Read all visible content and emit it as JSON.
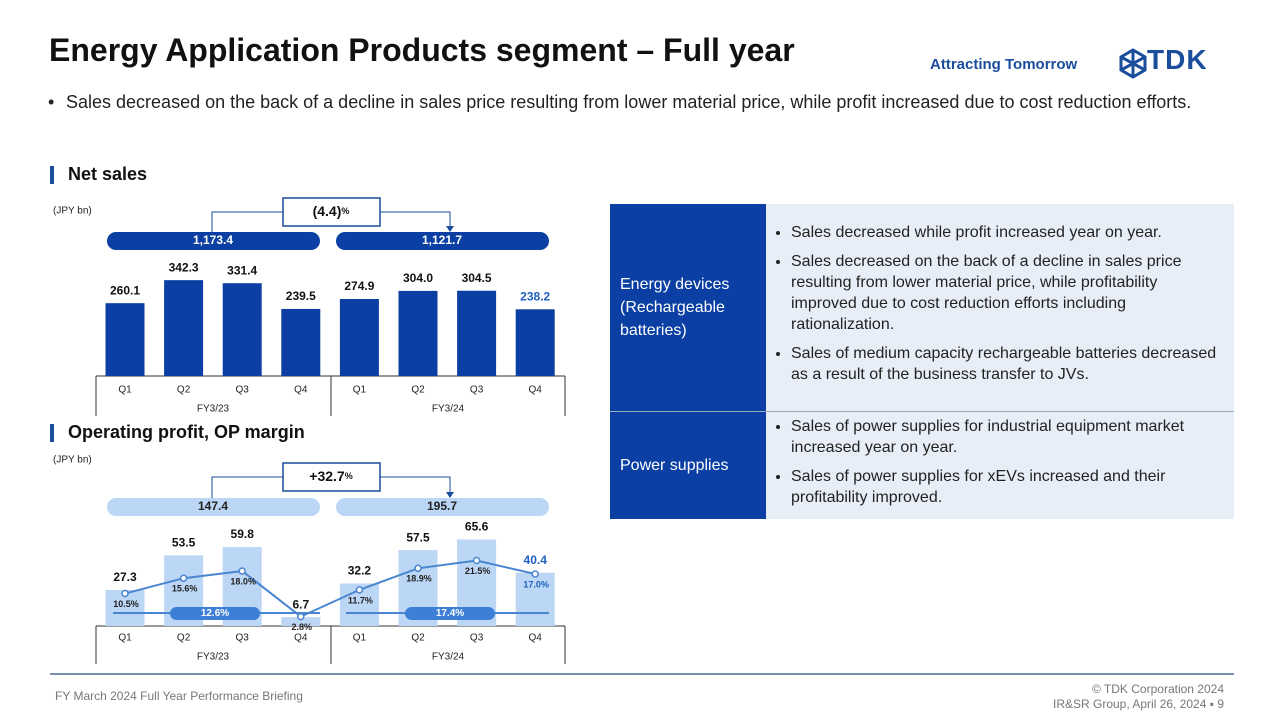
{
  "header": {
    "title": "Energy Application Products segment – Full year",
    "tagline": "Attracting Tomorrow",
    "logo": "TDK"
  },
  "summary": "Sales decreased on the back of a decline in sales price resulting from lower material price, while profit increased due to cost reduction efforts.",
  "chart_data": [
    {
      "type": "bar",
      "title": "Net sales",
      "unit": "(JPY bn)",
      "change": "(4.4)",
      "change_suffix": "%",
      "totals": [
        "1,173.4",
        "1,121.7"
      ],
      "categories": [
        "Q1",
        "Q2",
        "Q3",
        "Q4",
        "Q1",
        "Q2",
        "Q3",
        "Q4"
      ],
      "groups": [
        "FY3/23",
        "FY3/24"
      ],
      "values": [
        260.1,
        342.3,
        331.4,
        239.5,
        274.9,
        304.0,
        304.5,
        238.2
      ],
      "value_labels": [
        "260.1",
        "342.3",
        "331.4",
        "239.5",
        "274.9",
        "304.0",
        "304.5",
        "238.2"
      ],
      "color": "#0b3fa3",
      "latest_label_color": "#1f5fbf"
    },
    {
      "type": "bar_line",
      "title": "Operating profit, OP margin",
      "unit": "(JPY bn)",
      "change": "+32.7",
      "change_suffix": "%",
      "totals": [
        "147.4",
        "195.7"
      ],
      "categories": [
        "Q1",
        "Q2",
        "Q3",
        "Q4",
        "Q1",
        "Q2",
        "Q3",
        "Q4"
      ],
      "groups": [
        "FY3/23",
        "FY3/24"
      ],
      "values": [
        27.3,
        53.5,
        59.8,
        6.7,
        32.2,
        57.5,
        65.6,
        40.4
      ],
      "value_labels": [
        "27.3",
        "53.5",
        "59.8",
        "6.7",
        "32.2",
        "57.5",
        "65.6",
        "40.4"
      ],
      "margins": [
        10.5,
        15.6,
        18.0,
        2.8,
        11.7,
        18.9,
        21.5,
        17.0
      ],
      "margin_labels": [
        "10.5%",
        "15.6%",
        "18.0%",
        "2.8%",
        "11.7%",
        "18.9%",
        "21.5%",
        "17.0%"
      ],
      "average_margins": [
        "12.6%",
        "17.4%"
      ],
      "color": "#bcd6f6",
      "line_color": "#4a86d0",
      "latest_label_color": "#1f5fbf"
    }
  ],
  "table": {
    "rows": [
      {
        "label": "Energy devices (Rechargeable batteries)",
        "bullets": [
          "Sales decreased while profit increased year on year.",
          "Sales decreased on the back of a decline in sales price resulting from lower material price, while profitability improved due to cost reduction efforts including rationalization.",
          "Sales of medium capacity rechargeable batteries decreased as a result of the business transfer to JVs."
        ]
      },
      {
        "label": "Power supplies",
        "bullets": [
          "Sales of power supplies for industrial equipment market increased year on year.",
          "Sales of power supplies for xEVs increased and their profitability improved."
        ]
      }
    ]
  },
  "footer": {
    "left": "FY March 2024 Full Year Performance Briefing",
    "copyright": "© TDK Corporation 2024",
    "page": "IR&SR Group, April 26, 2024 ▪ 9"
  }
}
